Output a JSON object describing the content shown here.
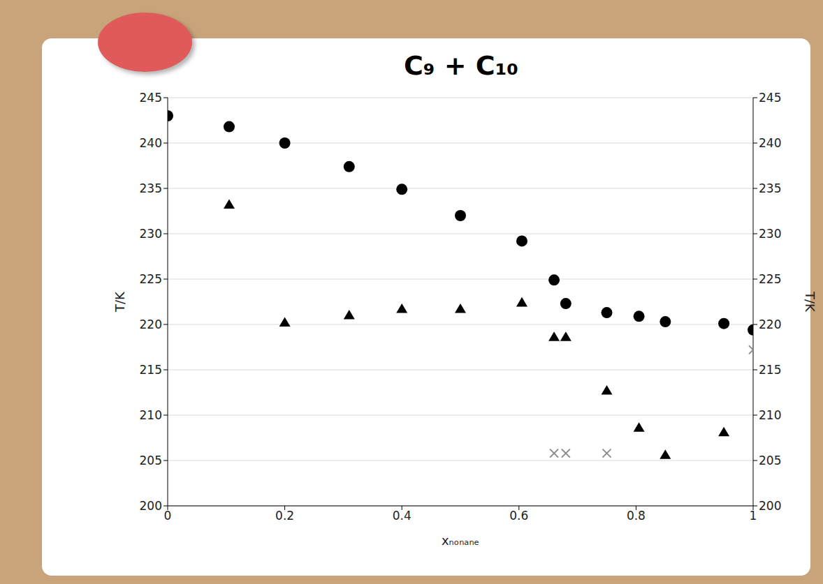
{
  "chart_data": {
    "type": "scatter",
    "title": "C₉ + C₁₀",
    "xlabel": "xₙₒₙₐₙₑ",
    "ylabel": "T/K",
    "y2label": "T/K",
    "xlim": [
      0,
      1
    ],
    "xticks": [
      0,
      0.2,
      0.4,
      0.6,
      0.8,
      1
    ],
    "ylim": [
      200,
      245
    ],
    "yticks": [
      200,
      205,
      210,
      215,
      220,
      225,
      230,
      235,
      240,
      245
    ],
    "y2lim": [
      200,
      245
    ],
    "y2ticks": [
      200,
      205,
      210,
      215,
      220,
      225,
      230,
      235,
      240,
      245
    ],
    "grid": true,
    "series": [
      {
        "color": "#000000",
        "marker": "circle",
        "x": [
          0,
          0.105,
          0.2,
          0.31,
          0.4,
          0.5,
          0.605,
          0.66,
          0.68,
          0.75,
          0.805,
          0.85,
          0.95,
          1
        ],
        "values": [
          243,
          241.8,
          240,
          237.4,
          234.9,
          232,
          229.2,
          224.9,
          222.3,
          221.3,
          220.9,
          220.3,
          220.1,
          219.4
        ]
      },
      {
        "color": "#000000",
        "marker": "triangle",
        "x": [
          0.105,
          0.2,
          0.31,
          0.4,
          0.5,
          0.605,
          0.66,
          0.68,
          0.75,
          0.805,
          0.85,
          0.95
        ],
        "values": [
          233.2,
          220.2,
          221,
          221.7,
          221.7,
          222.4,
          218.6,
          218.6,
          212.7,
          208.6,
          205.6,
          208.1
        ]
      },
      {
        "color": "#8c8c8c",
        "marker": "x",
        "x": [
          0.66,
          0.68,
          0.75,
          1
        ],
        "values": [
          205.8,
          205.8,
          205.8,
          217.2
        ]
      }
    ]
  }
}
